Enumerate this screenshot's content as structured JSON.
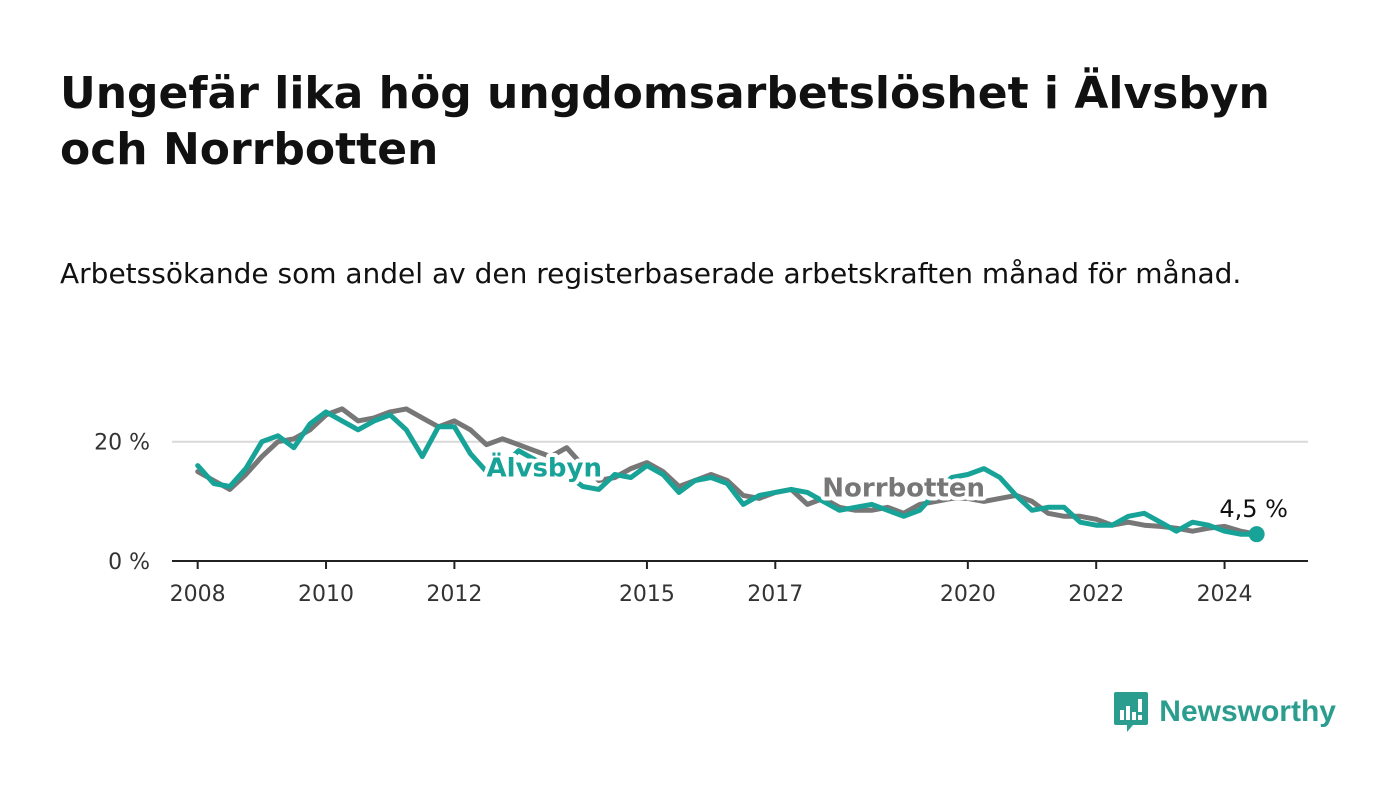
{
  "header": {
    "title": "Ungefär lika hög ungdomsarbetslöshet i Älvsbyn och Norrbotten",
    "subtitle": "Arbetssökande som andel av den registerbaserade arbetskraften månad för månad."
  },
  "brand": {
    "name": "Newsworthy",
    "icon": "newsworthy-bar-chart-icon",
    "color": "#2a9d8f"
  },
  "chart_data": {
    "type": "line",
    "xlim": [
      2007.6,
      2025.3
    ],
    "ylim": [
      0,
      27
    ],
    "x_ticks": [
      2008,
      2010,
      2012,
      2015,
      2017,
      2020,
      2022,
      2024
    ],
    "x_tick_labels": [
      "2008",
      "2010",
      "2012",
      "2015",
      "2017",
      "2020",
      "2022",
      "2024"
    ],
    "y_ticks": [
      0,
      20
    ],
    "y_tick_labels": [
      "0 %",
      "20 %"
    ],
    "grid": "horizontal",
    "legend": "inline labels",
    "end_label": "4,5 %",
    "series": [
      {
        "name": "Norrbotten",
        "color": "#777777",
        "x": [
          2008.0,
          2008.25,
          2008.5,
          2008.75,
          2009.0,
          2009.25,
          2009.5,
          2009.75,
          2010.0,
          2010.25,
          2010.5,
          2010.75,
          2011.0,
          2011.25,
          2011.5,
          2011.75,
          2012.0,
          2012.25,
          2012.5,
          2012.75,
          2013.0,
          2013.25,
          2013.5,
          2013.75,
          2014.0,
          2014.25,
          2014.5,
          2014.75,
          2015.0,
          2015.25,
          2015.5,
          2015.75,
          2016.0,
          2016.25,
          2016.5,
          2016.75,
          2017.0,
          2017.25,
          2017.5,
          2017.75,
          2018.0,
          2018.25,
          2018.5,
          2018.75,
          2019.0,
          2019.25,
          2019.5,
          2019.75,
          2020.0,
          2020.25,
          2020.5,
          2020.75,
          2021.0,
          2021.25,
          2021.5,
          2021.75,
          2022.0,
          2022.25,
          2022.5,
          2022.75,
          2023.0,
          2023.25,
          2023.5,
          2023.75,
          2024.0,
          2024.25,
          2024.5
        ],
        "values": [
          15.0,
          13.5,
          12.0,
          14.5,
          17.5,
          20.0,
          20.5,
          22.0,
          24.5,
          25.5,
          23.5,
          24.0,
          25.0,
          25.5,
          24.0,
          22.5,
          23.5,
          22.0,
          19.5,
          20.5,
          19.5,
          18.5,
          17.5,
          19.0,
          16.0,
          13.5,
          14.0,
          15.5,
          16.5,
          15.0,
          12.5,
          13.5,
          14.5,
          13.5,
          11.0,
          10.5,
          11.5,
          12.0,
          9.5,
          10.5,
          9.0,
          8.5,
          8.5,
          9.0,
          8.0,
          9.5,
          10.0,
          10.5,
          10.5,
          10.0,
          10.5,
          11.0,
          10.0,
          8.0,
          7.5,
          7.5,
          7.0,
          6.0,
          6.5,
          6.0,
          5.8,
          5.5,
          5.0,
          5.5,
          5.8,
          5.0,
          4.5
        ]
      },
      {
        "name": "Älvsbyn",
        "color": "#17a397",
        "x": [
          2008.0,
          2008.25,
          2008.5,
          2008.75,
          2009.0,
          2009.25,
          2009.5,
          2009.75,
          2010.0,
          2010.25,
          2010.5,
          2010.75,
          2011.0,
          2011.25,
          2011.5,
          2011.75,
          2012.0,
          2012.25,
          2012.5,
          2012.75,
          2013.0,
          2013.25,
          2013.5,
          2013.75,
          2014.0,
          2014.25,
          2014.5,
          2014.75,
          2015.0,
          2015.25,
          2015.5,
          2015.75,
          2016.0,
          2016.25,
          2016.5,
          2016.75,
          2017.0,
          2017.25,
          2017.5,
          2017.75,
          2018.0,
          2018.25,
          2018.5,
          2018.75,
          2019.0,
          2019.25,
          2019.5,
          2019.75,
          2020.0,
          2020.25,
          2020.5,
          2020.75,
          2021.0,
          2021.25,
          2021.5,
          2021.75,
          2022.0,
          2022.25,
          2022.5,
          2022.75,
          2023.0,
          2023.25,
          2023.5,
          2023.75,
          2024.0,
          2024.25,
          2024.5
        ],
        "values": [
          16.0,
          13.0,
          12.5,
          15.5,
          20.0,
          21.0,
          19.0,
          23.0,
          25.0,
          23.5,
          22.0,
          23.5,
          24.5,
          22.0,
          17.5,
          22.5,
          22.5,
          18.0,
          15.0,
          16.0,
          18.5,
          17.0,
          15.5,
          14.5,
          12.5,
          12.0,
          14.5,
          14.0,
          16.0,
          14.5,
          11.5,
          13.5,
          14.0,
          13.0,
          9.5,
          11.0,
          11.5,
          12.0,
          11.5,
          10.0,
          8.5,
          9.0,
          9.5,
          8.5,
          7.5,
          8.5,
          11.5,
          14.0,
          14.5,
          15.5,
          14.0,
          11.0,
          8.5,
          9.0,
          9.0,
          6.5,
          6.0,
          6.0,
          7.5,
          8.0,
          6.5,
          5.0,
          6.5,
          6.0,
          5.0,
          4.5,
          4.5
        ]
      }
    ]
  }
}
